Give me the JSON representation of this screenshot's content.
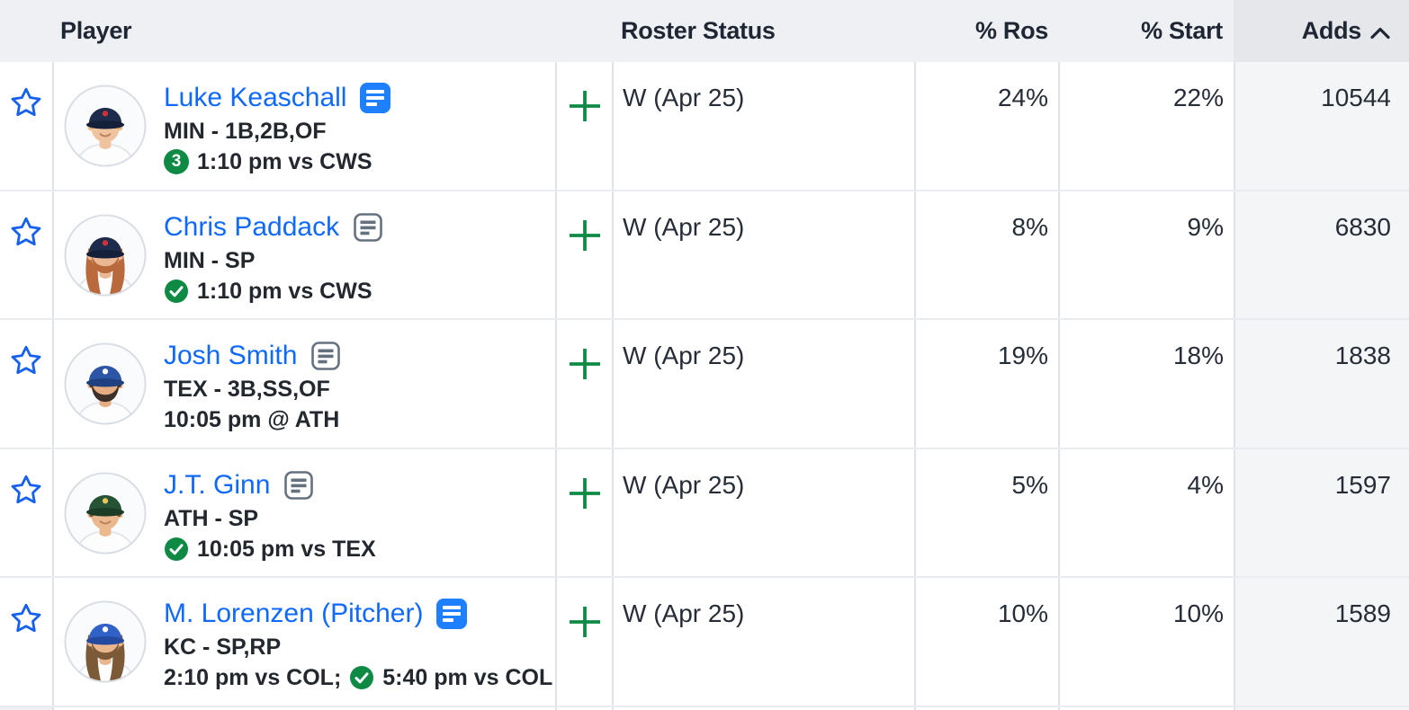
{
  "header": {
    "player": "Player",
    "roster_status": "Roster Status",
    "pct_ros": "% Ros",
    "pct_start": "% Start",
    "adds": "Adds",
    "sort_column": "Adds",
    "sort_icon": "chevron-up"
  },
  "rows": [
    {
      "name": "Luke Keaschall",
      "note": "filled",
      "team_pos": "MIN - 1B,2B,OF",
      "game": [
        {
          "type": "badge",
          "text": "3"
        },
        {
          "type": "text",
          "text": "1:10 pm vs CWS"
        }
      ],
      "roster_status": "W (Apr 25)",
      "pct_ros": "24%",
      "pct_start": "22%",
      "adds": "10544",
      "avatar": {
        "cap": "#1d2b4d",
        "bill": "#141f39",
        "mark": "#cf3339",
        "hair": "#d9ae62",
        "skin": "#efc39e",
        "beard": false,
        "long_hair": false
      }
    },
    {
      "name": "Chris Paddack",
      "note": "outline",
      "team_pos": "MIN - SP",
      "game": [
        {
          "type": "check"
        },
        {
          "type": "text",
          "text": "1:10 pm vs CWS"
        }
      ],
      "roster_status": "W (Apr 25)",
      "pct_ros": "8%",
      "pct_start": "9%",
      "adds": "6830",
      "avatar": {
        "cap": "#1d2b4d",
        "bill": "#141f39",
        "mark": "#cf3339",
        "hair": "#b9693c",
        "skin": "#eab894",
        "beard": true,
        "long_hair": true
      }
    },
    {
      "name": "Josh Smith",
      "note": "outline",
      "team_pos": "TEX - 3B,SS,OF",
      "game": [
        {
          "type": "text",
          "text": "10:05 pm @ ATH"
        }
      ],
      "roster_status": "W (Apr 25)",
      "pct_ros": "19%",
      "pct_start": "18%",
      "adds": "1838",
      "avatar": {
        "cap": "#2c55a5",
        "bill": "#20407f",
        "mark": "#ffffff",
        "hair": "#3c3029",
        "skin": "#e6ac82",
        "beard": true,
        "long_hair": false
      }
    },
    {
      "name": "J.T. Ginn",
      "note": "outline",
      "team_pos": "ATH - SP",
      "game": [
        {
          "type": "check"
        },
        {
          "type": "text",
          "text": "10:05 pm vs TEX"
        }
      ],
      "roster_status": "W (Apr 25)",
      "pct_ros": "5%",
      "pct_start": "4%",
      "adds": "1597",
      "avatar": {
        "cap": "#265235",
        "bill": "#1b3d26",
        "mark": "#e6c65a",
        "hair": "#6b5136",
        "skin": "#ecb98f",
        "beard": false,
        "long_hair": false
      }
    },
    {
      "name": "M. Lorenzen (Pitcher)",
      "note": "filled",
      "team_pos": "KC - SP,RP",
      "game": [
        {
          "type": "text",
          "text": "2:10 pm vs COL;"
        },
        {
          "type": "check"
        },
        {
          "type": "text",
          "text": "5:40 pm vs COL"
        }
      ],
      "roster_status": "W (Apr 25)",
      "pct_ros": "10%",
      "pct_start": "10%",
      "adds": "1589",
      "avatar": {
        "cap": "#3061c9",
        "bill": "#234a9e",
        "mark": "#ffffff",
        "hair": "#7c5a38",
        "skin": "#e9b68d",
        "beard": true,
        "long_hair": true
      }
    }
  ],
  "colors": {
    "link_blue": "#0f69ff",
    "star_blue": "#1660f0",
    "note_blue": "#1e80ff",
    "note_gray": "#667180",
    "green": "#0f8a45",
    "plus_green": "#0f8a45",
    "text_dark": "#23282e",
    "num_dark": "#262d37",
    "header_bg": "#eef0f3",
    "adds_header_bg": "#e5e7ea",
    "adds_col_bg": "#f4f5f7",
    "divider": "#dfe3e9",
    "row_border": "#e8ebef"
  }
}
